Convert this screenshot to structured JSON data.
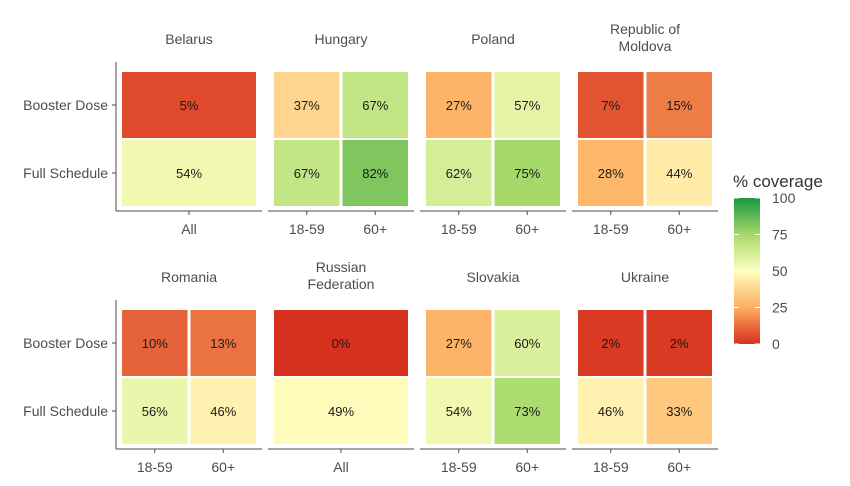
{
  "chart_data": {
    "type": "heatmap",
    "rows": [
      "Booster Dose",
      "Full Schedule"
    ],
    "facets": [
      {
        "title": [
          "Belarus"
        ],
        "columns": [
          "All"
        ],
        "values": {
          "Booster Dose": [
            5
          ],
          "Full Schedule": [
            54
          ]
        }
      },
      {
        "title": [
          "Hungary"
        ],
        "columns": [
          "18-59",
          "60+"
        ],
        "values": {
          "Booster Dose": [
            37,
            67
          ],
          "Full Schedule": [
            67,
            82
          ]
        }
      },
      {
        "title": [
          "Poland"
        ],
        "columns": [
          "18-59",
          "60+"
        ],
        "values": {
          "Booster Dose": [
            27,
            57
          ],
          "Full Schedule": [
            62,
            75
          ]
        }
      },
      {
        "title": [
          "Republic of",
          "Moldova"
        ],
        "columns": [
          "18-59",
          "60+"
        ],
        "values": {
          "Booster Dose": [
            7,
            15
          ],
          "Full Schedule": [
            28,
            44
          ]
        }
      },
      {
        "title": [
          "Romania"
        ],
        "columns": [
          "18-59",
          "60+"
        ],
        "values": {
          "Booster Dose": [
            10,
            13
          ],
          "Full Schedule": [
            56,
            46
          ]
        }
      },
      {
        "title": [
          "Russian",
          "Federation"
        ],
        "columns": [
          "All"
        ],
        "values": {
          "Booster Dose": [
            0
          ],
          "Full Schedule": [
            49
          ]
        }
      },
      {
        "title": [
          "Slovakia"
        ],
        "columns": [
          "18-59",
          "60+"
        ],
        "values": {
          "Booster Dose": [
            27,
            60
          ],
          "Full Schedule": [
            54,
            73
          ]
        }
      },
      {
        "title": [
          "Ukraine"
        ],
        "columns": [
          "18-59",
          "60+"
        ],
        "values": {
          "Booster Dose": [
            2,
            2
          ],
          "Full Schedule": [
            46,
            33
          ]
        }
      }
    ],
    "value_suffix": "%",
    "legend": {
      "title": "% coverage",
      "ticks": [
        100,
        75,
        50,
        25,
        0
      ],
      "range": [
        0,
        100
      ],
      "placement": "right"
    },
    "colorscale": [
      "#d7301f",
      "#fdae61",
      "#ffffbf",
      "#a6d96a",
      "#1a9641"
    ]
  }
}
